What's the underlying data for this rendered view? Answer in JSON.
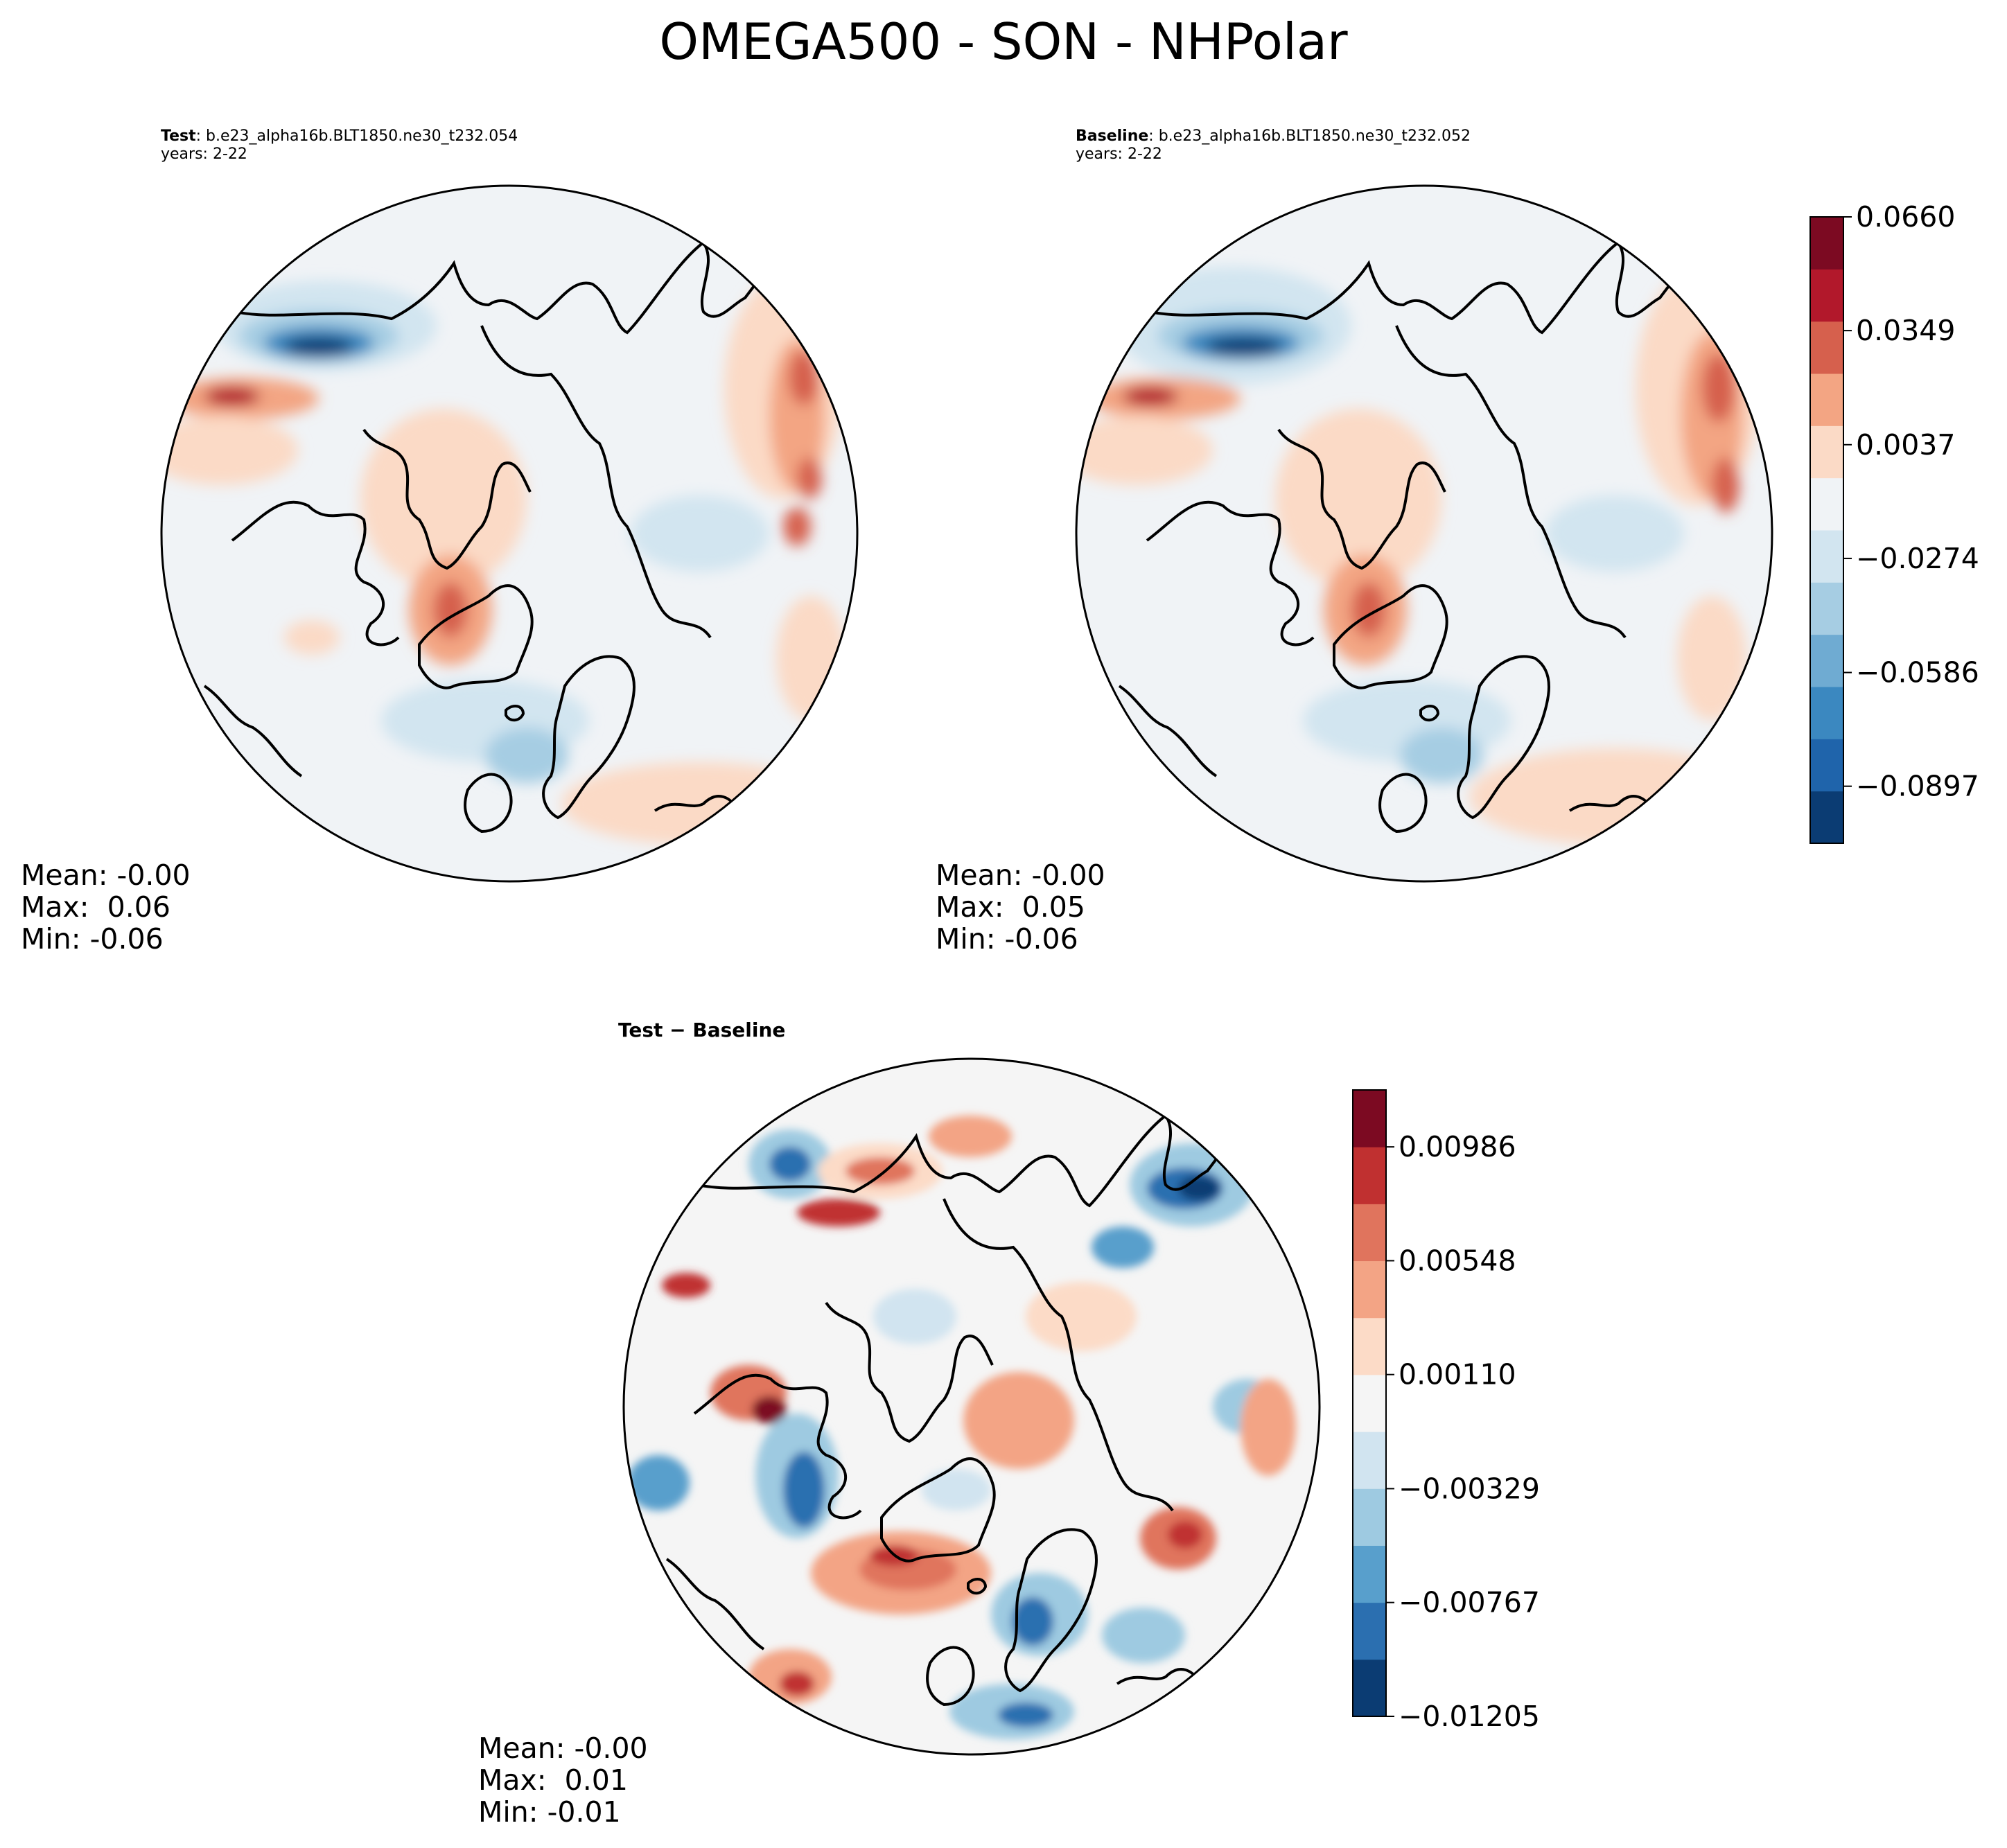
{
  "figure": {
    "title": "OMEGA500 - SON - NHPolar"
  },
  "panels": {
    "test": {
      "label": "Test",
      "case": ": b.e23_alpha16b.BLT1850.ne30_t232.054",
      "years": "years: 2-22",
      "stats": {
        "mean": "Mean: -0.00",
        "max": "Max:  0.06",
        "min": "Min: -0.06"
      }
    },
    "baseline": {
      "label": "Baseline",
      "case": ": b.e23_alpha16b.BLT1850.ne30_t232.052",
      "years": "years: 2-22",
      "stats": {
        "mean": "Mean: -0.00",
        "max": "Max:  0.05",
        "min": "Min: -0.06"
      }
    },
    "diff": {
      "title": "Test − Baseline",
      "stats": {
        "mean": "Mean: -0.00",
        "max": "Max:  0.01",
        "min": "Min: -0.01"
      }
    }
  },
  "chart_data": [
    {
      "type": "heatmap",
      "title": "Test",
      "projection": "North polar stereographic",
      "variable": "OMEGA500",
      "season": "SON",
      "colorbar": {
        "ticks": [
          "0.0660",
          "0.0349",
          "0.0037",
          "−0.0274",
          "−0.0586",
          "−0.0897"
        ],
        "tick_values": [
          0.066,
          0.0349,
          0.0037,
          -0.0274,
          -0.0586,
          -0.0897
        ],
        "range": [
          -0.1053,
          0.066
        ],
        "levels": 11,
        "colors": [
          "#0b3c73",
          "#1f64ab",
          "#3b88c0",
          "#6fabd2",
          "#a6cde3",
          "#d2e5f0",
          "#f0f3f6",
          "#fbdac6",
          "#f3a583",
          "#d6604d",
          "#b2182b",
          "#7c0a22"
        ]
      }
    },
    {
      "type": "heatmap",
      "title": "Baseline",
      "projection": "North polar stereographic",
      "variable": "OMEGA500",
      "season": "SON",
      "colorbar": "shared with Test"
    },
    {
      "type": "heatmap",
      "title": "Test − Baseline",
      "projection": "North polar stereographic",
      "colorbar": {
        "ticks": [
          "0.00986",
          "0.00548",
          "0.00110",
          "−0.00329",
          "−0.00767",
          "−0.01205"
        ],
        "tick_values": [
          0.00986,
          0.00548,
          0.0011,
          -0.00329,
          -0.00767,
          -0.01205
        ],
        "range": [
          -0.01205,
          0.01205
        ],
        "levels": 11,
        "colors": [
          "#0b3c73",
          "#2b6fb0",
          "#589fcc",
          "#9ecae1",
          "#d1e4f0",
          "#f5f5f5",
          "#fcdbc7",
          "#f3a485",
          "#e0745d",
          "#c03030",
          "#7c0a22"
        ]
      }
    }
  ],
  "colors": {
    "land_outline": "#000000",
    "neutral": "#f0f3f6",
    "warm": "#fbdac6",
    "cool": "#d2e5f0"
  }
}
